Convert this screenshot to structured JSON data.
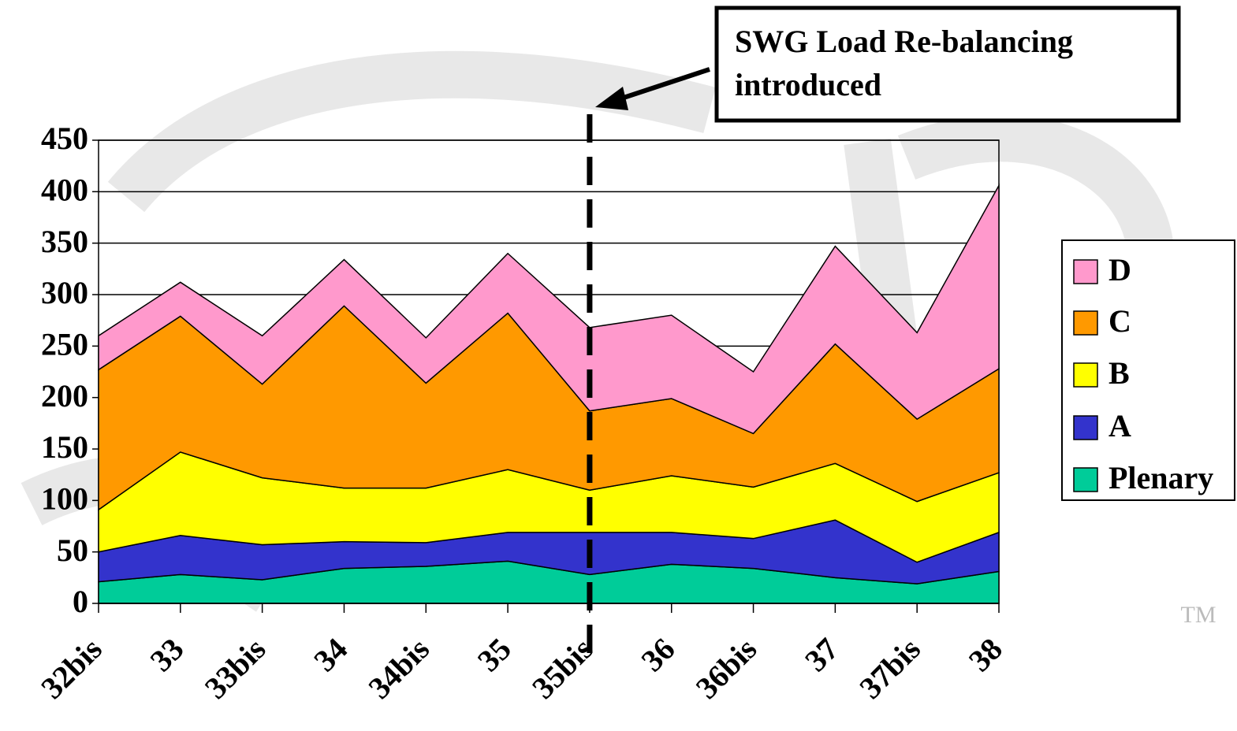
{
  "chart_data": {
    "type": "stacked-area",
    "annotation": [
      "SWG Load Re-balancing",
      "introduced"
    ],
    "marker_text": "TM",
    "categories": [
      "32bis",
      "33",
      "33bis",
      "34",
      "34bis",
      "35",
      "35bis",
      "36",
      "36bis",
      "37",
      "37bis",
      "38"
    ],
    "series": [
      {
        "name": "Plenary",
        "color": "#00cc99",
        "values": [
          21,
          28,
          23,
          34,
          36,
          41,
          28,
          38,
          34,
          25,
          19,
          31
        ]
      },
      {
        "name": "A",
        "color": "#3333cc",
        "values": [
          29,
          38,
          34,
          26,
          23,
          28,
          41,
          31,
          29,
          56,
          21,
          38
        ]
      },
      {
        "name": "B",
        "color": "#ffff00",
        "values": [
          41,
          81,
          65,
          52,
          53,
          61,
          41,
          55,
          50,
          55,
          59,
          58
        ]
      },
      {
        "name": "C",
        "color": "#ff9900",
        "values": [
          136,
          132,
          91,
          177,
          102,
          152,
          77,
          75,
          52,
          116,
          80,
          101
        ]
      },
      {
        "name": "D",
        "color": "#ff99cc",
        "values": [
          33,
          33,
          47,
          45,
          44,
          58,
          81,
          81,
          60,
          95,
          84,
          178
        ]
      }
    ],
    "ylim": [
      0,
      450
    ],
    "yticks": [
      0,
      50,
      100,
      150,
      200,
      250,
      300,
      350,
      400,
      450
    ],
    "grid": true,
    "legend": "right",
    "divider_category": 6
  }
}
